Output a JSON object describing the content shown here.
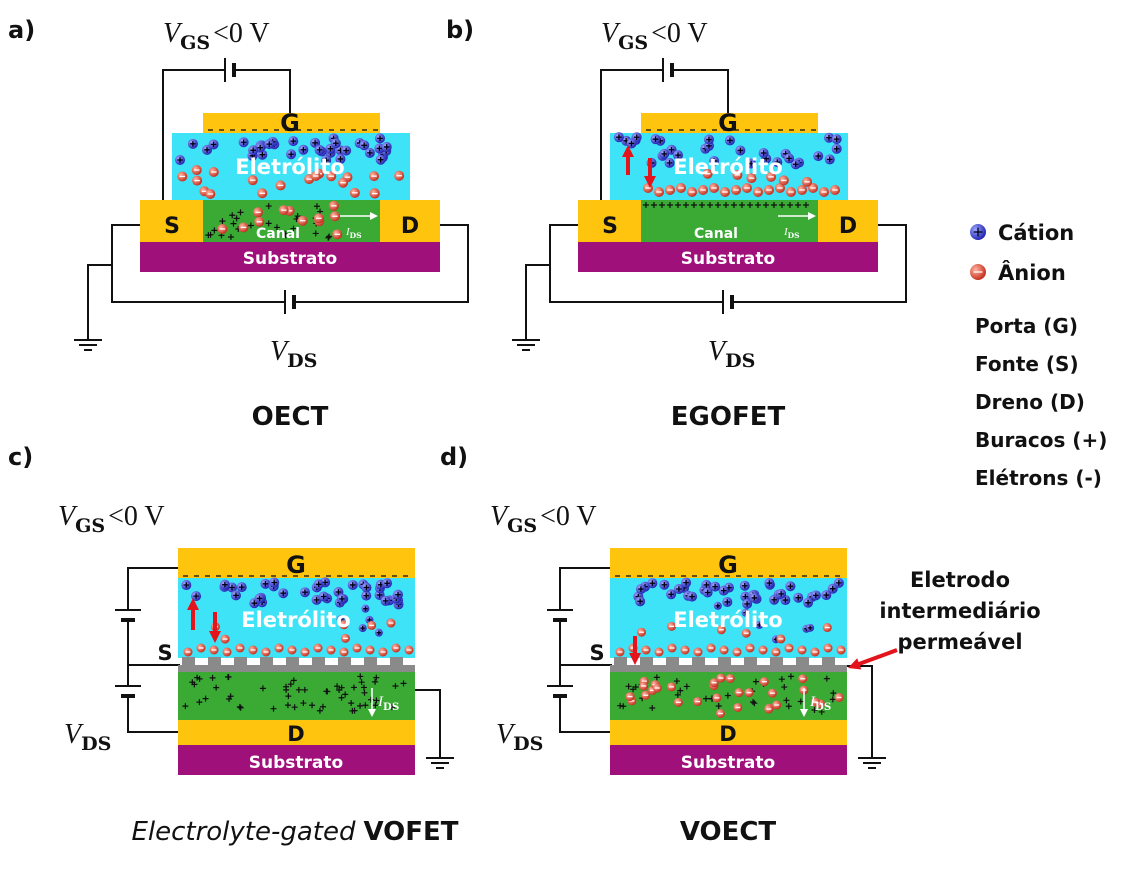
{
  "panels": [
    {
      "label": "a)",
      "title": "OECT",
      "vgs": {
        "symbol": "V",
        "sub": "GS",
        "text": "<0 V"
      },
      "vds": {
        "symbol": "V",
        "sub": "DS"
      },
      "gate": "G",
      "source": "S",
      "drain": "D",
      "electrolyte": "Eletrólito",
      "channel": "Canal",
      "ids": {
        "symbol": "I",
        "sub": "DS"
      },
      "substrate": "Substrato"
    },
    {
      "label": "b)",
      "title": "EGOFET",
      "vgs": {
        "symbol": "V",
        "sub": "GS",
        "text": "<0 V"
      },
      "vds": {
        "symbol": "V",
        "sub": "DS"
      },
      "gate": "G",
      "source": "S",
      "drain": "D",
      "electrolyte": "Eletrólito",
      "channel": "Canal",
      "ids": {
        "symbol": "I",
        "sub": "DS"
      },
      "substrate": "Substrato"
    },
    {
      "label": "c)",
      "title": {
        "italic": "Electrolyte-gated",
        "bold": "VOFET"
      },
      "vgs": {
        "symbol": "V",
        "sub": "GS",
        "text": "<0 V"
      },
      "vds": {
        "symbol": "V",
        "sub": "DS"
      },
      "gate": "G",
      "source": "S",
      "drain": "D",
      "electrolyte": "Eletrólito",
      "ids": {
        "symbol": "I",
        "sub": "DS"
      },
      "substrate": "Substrato"
    },
    {
      "label": "d)",
      "title": "VOECT",
      "vgs": {
        "symbol": "V",
        "sub": "GS",
        "text": "<0 V"
      },
      "vds": {
        "symbol": "V",
        "sub": "DS"
      },
      "gate": "G",
      "source": "S",
      "drain": "D",
      "electrolyte": "Eletrólito",
      "ids": {
        "symbol": "I",
        "sub": "DS"
      },
      "substrate": "Substrato",
      "annotation": [
        "Eletrodo",
        "intermediário",
        "permeável"
      ]
    }
  ],
  "legend": {
    "cation": "Cátion",
    "anion": "Ânion",
    "terms": [
      "Porta (G)",
      "Fonte (S)",
      "Dreno (D)",
      "Buracos (+)",
      "Elétrons (-)"
    ]
  }
}
